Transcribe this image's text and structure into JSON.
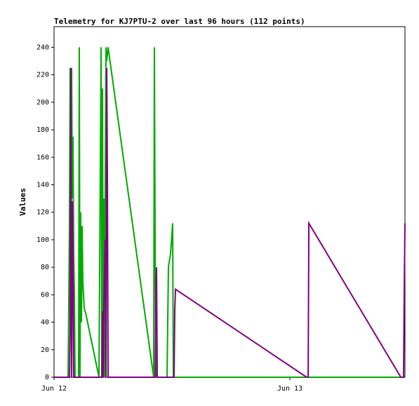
{
  "chart_data": {
    "type": "line",
    "title": "Telemetry for KJ7PTU-2 over last 96 hours (112 points)",
    "y_label": "Values",
    "xlim": [
      0,
      35.71
    ],
    "ylim": [
      0,
      255
    ],
    "xticks": [
      {
        "value": 0,
        "label": "Jun 12"
      },
      {
        "value": 24,
        "label": "Jun 13"
      }
    ],
    "yticks": [
      0,
      20,
      40,
      60,
      80,
      100,
      120,
      140,
      160,
      180,
      200,
      220,
      240
    ],
    "series": [
      {
        "color": "#00aa00",
        "x": [
          1.43,
          1.57,
          1.64,
          1.71,
          1.79,
          1.86,
          1.93,
          2.0,
          2.07,
          2.14,
          2.5,
          2.57,
          2.64,
          2.71,
          2.79,
          2.86,
          2.93,
          3.07,
          3.21,
          4.57,
          4.79,
          4.86,
          4.93,
          5.0,
          5.07,
          5.14,
          5.21,
          5.29,
          5.36,
          5.5,
          10.14,
          10.21,
          10.29,
          10.36,
          11.5,
          11.64,
          11.86,
          12.07,
          12.14,
          35.71
        ],
        "values": [
          0,
          110,
          225,
          60,
          225,
          130,
          175,
          90,
          60,
          0,
          0,
          240,
          0,
          120,
          40,
          110,
          70,
          50,
          47,
          0,
          240,
          0,
          210,
          40,
          130,
          0,
          140,
          240,
          230,
          240,
          0,
          240,
          90,
          0,
          0,
          80,
          90,
          112,
          0,
          0
        ]
      },
      {
        "color": "#800080",
        "x": [
          0,
          1.57,
          1.64,
          1.71,
          1.79,
          1.86,
          1.93,
          2.0,
          4.86,
          4.93,
          5.0,
          5.07,
          5.21,
          5.29,
          5.36,
          5.43,
          5.5,
          10.29,
          10.36,
          10.43,
          10.5,
          12.21,
          12.29,
          12.36,
          25.71,
          25.86,
          25.93,
          35.29,
          35.57,
          35.64,
          35.71
        ],
        "values": [
          0,
          0,
          35,
          225,
          0,
          128,
          80,
          0,
          0,
          48,
          0,
          50,
          100,
          0,
          225,
          145,
          0,
          0,
          70,
          80,
          0,
          0,
          50,
          64,
          0,
          0,
          112,
          0,
          0,
          65,
          112
        ]
      }
    ]
  }
}
